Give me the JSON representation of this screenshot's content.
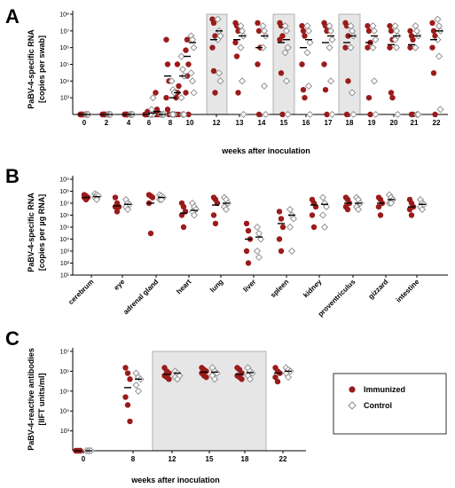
{
  "colors": {
    "immunized": "#9b1b1b",
    "control_stroke": "#8a8a8a",
    "control_fill": "#ffffff",
    "shade": "#e6e6e6",
    "median": "#000000"
  },
  "chart_data": [
    {
      "panel": "A",
      "type": "scatter",
      "ylabel_line1": "PaBV-4-specific RNA",
      "ylabel_line2": "[copies per swab]",
      "xlabel": "weeks after inoculation",
      "yscale": "log",
      "ylim": [
        100,
        100000000
      ],
      "categories": [
        "0",
        "2",
        "4",
        "6",
        "7",
        "8",
        "9",
        "10",
        "12",
        "13",
        "14",
        "15",
        "16",
        "17",
        "18",
        "19",
        "20",
        "21",
        "22"
      ],
      "x_tick_labels": [
        "0",
        "2",
        "4",
        "6",
        "8",
        "10",
        "12",
        "13",
        "14",
        "15",
        "16",
        "17",
        "18",
        "19",
        "20",
        "21",
        "22"
      ],
      "x_tick_indices": [
        0,
        1,
        2,
        3,
        5,
        7,
        8,
        9,
        10,
        11,
        12,
        13,
        14,
        15,
        16,
        17,
        18
      ],
      "shaded_categories": [
        "12",
        "15",
        "18"
      ],
      "y_ticks": [
        {
          "v": 1000,
          "label": "10³"
        },
        {
          "v": 10000,
          "label": "10⁴"
        },
        {
          "v": 100000,
          "label": "10⁵"
        },
        {
          "v": 1000000,
          "label": "10⁶"
        },
        {
          "v": 10000000,
          "label": "10⁷"
        },
        {
          "v": 100000000,
          "label": "10⁸"
        }
      ],
      "series": [
        {
          "group": "immunized",
          "values": [
            [
              100,
              100,
              100,
              100,
              100,
              100
            ],
            [
              100,
              100,
              100,
              100,
              100,
              100
            ],
            [
              100,
              100,
              100,
              100,
              100,
              100
            ],
            [
              100,
              100,
              100,
              100,
              100,
              150
            ],
            [
              100,
              100,
              100,
              2000,
              200,
              100
            ],
            [
              3000000,
              100000,
              10000,
              1000,
              200,
              100
            ],
            [
              100,
              2000,
              100,
              1000,
              100000,
              5000
            ],
            [
              700000,
              3000000,
              100000,
              2000,
              20000,
              100
            ],
            [
              50000000,
              30000000,
              5000000,
              1000000,
              40000,
              2000
            ],
            [
              30000000,
              20000000,
              10000000,
              2000000,
              300000,
              2000
            ],
            [
              30000000,
              10000000,
              1000000,
              100000,
              100,
              1000000
            ],
            [
              30000000,
              20000000,
              5000000,
              3000000,
              30000,
              100
            ],
            [
              20000000,
              10000000,
              5000000,
              100000,
              3000,
              1000
            ],
            [
              30000000,
              20000000,
              10000000,
              100000,
              3000,
              100
            ],
            [
              30000000,
              20000000,
              5000000,
              1000000,
              100,
              10000
            ],
            [
              20000000,
              10000000,
              2000000,
              1000000,
              1000,
              100
            ],
            [
              20000000,
              10000000,
              3000000,
              1000000,
              2000,
              1000
            ],
            [
              10000000,
              5000000,
              3000000,
              1000000,
              100,
              100
            ],
            [
              30000000,
              10000000,
              5000000,
              1000000,
              30000,
              100
            ]
          ],
          "medians": [
            100,
            100,
            100,
            100,
            150,
            20000,
            2000,
            300000,
            3000000,
            3000000,
            1000000,
            2000000,
            1000000,
            2000000,
            2000000,
            2000000,
            1500000,
            1500000,
            3000000
          ]
        },
        {
          "group": "control",
          "values": [
            [
              100,
              100,
              100,
              100,
              100,
              100
            ],
            [
              100,
              100,
              100,
              100,
              100,
              100
            ],
            [
              100,
              100,
              100,
              100,
              100,
              100
            ],
            [
              100,
              100,
              100,
              100,
              200,
              1000
            ],
            [
              100,
              100,
              100,
              100,
              100,
              100
            ],
            [
              10000,
              3000,
              100,
              100,
              100,
              2000
            ],
            [
              300000,
              50000,
              20000,
              1000,
              100,
              100
            ],
            [
              5000000,
              3000000,
              1000000,
              30000,
              10000,
              2000
            ],
            [
              50000000,
              10000000,
              5000000,
              3000000,
              30000,
              10000
            ],
            [
              20000000,
              10000000,
              5000000,
              1000000,
              10000,
              100
            ],
            [
              20000000,
              10000000,
              5000000,
              1000000,
              5000,
              100
            ],
            [
              20000000,
              10000000,
              1000000,
              500000,
              10000,
              100
            ],
            [
              20000000,
              10000000,
              2000000,
              500000,
              5000,
              100
            ],
            [
              20000000,
              10000000,
              3000000,
              1000000,
              10000,
              100
            ],
            [
              20000000,
              10000000,
              5000000,
              1000000,
              2000,
              100
            ],
            [
              20000000,
              10000000,
              3000000,
              1000000,
              10000,
              100
            ],
            [
              20000000,
              10000000,
              5000000,
              3000000,
              1000000,
              100
            ],
            [
              20000000,
              10000000,
              5000000,
              1000000,
              100,
              100
            ],
            [
              50000000,
              20000000,
              10000000,
              3000000,
              300000,
              200
            ]
          ],
          "medians": [
            100,
            100,
            100,
            120,
            100,
            1000,
            20000,
            2000000,
            10000000,
            5000000,
            5000000,
            3000000,
            3000000,
            5000000,
            5000000,
            5000000,
            5000000,
            5000000,
            10000000
          ]
        }
      ]
    },
    {
      "panel": "B",
      "type": "scatter",
      "ylabel_line1": "PaBV-4-specific RNA",
      "ylabel_line2": "[copies per µg RNA]",
      "yscale": "log",
      "ylim": [
        10,
        1000000000
      ],
      "categories": [
        "cerebrum",
        "eye",
        "adrenal gland",
        "heart",
        "lung",
        "liver",
        "spleen",
        "kidney",
        "proventriculus",
        "gizzard",
        "intestine"
      ],
      "y_ticks": [
        {
          "v": 10,
          "label": "10¹"
        },
        {
          "v": 100,
          "label": "10²"
        },
        {
          "v": 1000,
          "label": "10³"
        },
        {
          "v": 10000,
          "label": "10⁴"
        },
        {
          "v": 100000,
          "label": "10⁵"
        },
        {
          "v": 1000000,
          "label": "10⁶"
        },
        {
          "v": 10000000,
          "label": "10⁷"
        },
        {
          "v": 100000000,
          "label": "10⁸"
        },
        {
          "v": 1000000000,
          "label": "10⁹"
        }
      ],
      "series": [
        {
          "group": "immunized",
          "values": [
            [
              50000000,
              40000000,
              30000000,
              30000000,
              20000000
            ],
            [
              30000000,
              10000000,
              5000000,
              5000000,
              2000000
            ],
            [
              50000000,
              40000000,
              30000000,
              10000000,
              30000
            ],
            [
              10000000,
              5000000,
              2000000,
              1000000,
              100000
            ],
            [
              30000000,
              20000000,
              10000000,
              1000000,
              200000
            ],
            [
              200000,
              50000,
              10000,
              1000,
              100
            ],
            [
              2000000,
              500000,
              100000,
              10000,
              1000
            ],
            [
              20000000,
              10000000,
              5000000,
              1000000,
              100000
            ],
            [
              30000000,
              20000000,
              10000000,
              5000000,
              3000000
            ],
            [
              30000000,
              20000000,
              10000000,
              5000000,
              1000000
            ],
            [
              20000000,
              10000000,
              5000000,
              3000000,
              1000000
            ]
          ],
          "medians": [
            30000000,
            6000000,
            10000000,
            1500000,
            7000000,
            10000,
            200000,
            7000000,
            10000000,
            10000000,
            5000000
          ]
        },
        {
          "group": "control",
          "values": [
            [
              60000000,
              50000000,
              40000000,
              30000000,
              20000000
            ],
            [
              20000000,
              10000000,
              8000000,
              5000000,
              3000000
            ],
            [
              50000000,
              40000000,
              30000000,
              20000000,
              20000000
            ],
            [
              10000000,
              5000000,
              3000000,
              2000000,
              1000000
            ],
            [
              30000000,
              20000000,
              10000000,
              5000000,
              3000000
            ],
            [
              100000,
              30000,
              10000,
              1000,
              300
            ],
            [
              3000000,
              1000000,
              500000,
              100000,
              1000
            ],
            [
              30000000,
              10000000,
              5000000,
              1000000,
              100000
            ],
            [
              30000000,
              20000000,
              10000000,
              5000000,
              3000000
            ],
            [
              50000000,
              30000000,
              20000000,
              10000000,
              10000000
            ],
            [
              20000000,
              10000000,
              8000000,
              5000000,
              3000000
            ]
          ],
          "medians": [
            35000000,
            8000000,
            30000000,
            2500000,
            10000000,
            15000,
            1000000,
            8000000,
            10000000,
            20000000,
            8000000
          ]
        }
      ]
    },
    {
      "panel": "C",
      "type": "scatter",
      "ylabel_line1": "PaBV-4-reactive antibodies",
      "ylabel_line2": "[IIFT units/ml]",
      "xlabel": "weeks after inoculation",
      "yscale": "log",
      "ylim": [
        100,
        10000000
      ],
      "categories": [
        "0",
        "8",
        "12",
        "15",
        "18",
        "22"
      ],
      "shaded_categories": [
        "12",
        "15",
        "18"
      ],
      "y_ticks": [
        {
          "v": 1000,
          "label": "10³"
        },
        {
          "v": 10000,
          "label": "10⁴"
        },
        {
          "v": 100000,
          "label": "10⁵"
        },
        {
          "v": 1000000,
          "label": "10⁶"
        },
        {
          "v": 10000000,
          "label": "10⁷"
        }
      ],
      "series": [
        {
          "group": "immunized",
          "values": [
            [
              100,
              100,
              100,
              100,
              100,
              100
            ],
            [
              1500000,
              800000,
              400000,
              50000,
              20000,
              3000
            ],
            [
              1500000,
              1000000,
              800000,
              600000,
              500000,
              400000
            ],
            [
              1500000,
              1200000,
              1000000,
              800000,
              600000,
              500000
            ],
            [
              1500000,
              1200000,
              800000,
              600000,
              500000,
              400000
            ],
            [
              1500000,
              1000000,
              800000,
              500000,
              300000
            ]
          ],
          "medians": [
            100,
            150000,
            700000,
            900000,
            700000,
            800000
          ]
        },
        {
          "group": "control",
          "values": [
            [
              100,
              100,
              100,
              100,
              100,
              100
            ],
            [
              800000,
              500000,
              400000,
              200000,
              100000
            ],
            [
              1000000,
              800000,
              600000,
              500000,
              400000
            ],
            [
              1500000,
              1000000,
              800000,
              600000,
              400000
            ],
            [
              1500000,
              1000000,
              800000,
              600000,
              400000
            ],
            [
              1500000,
              1200000,
              1000000,
              800000,
              500000
            ]
          ],
          "medians": [
            100,
            400000,
            800000,
            900000,
            850000,
            1000000
          ]
        }
      ]
    }
  ],
  "legend": [
    {
      "group": "immunized",
      "label": "Immunized"
    },
    {
      "group": "control",
      "label": "Control"
    }
  ],
  "panel_letters": [
    "A",
    "B",
    "C"
  ]
}
